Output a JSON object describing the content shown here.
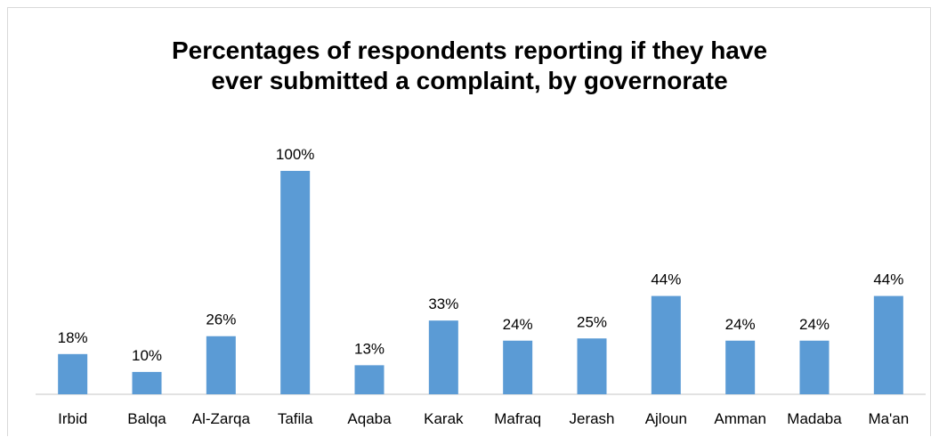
{
  "chart_data": {
    "type": "bar",
    "title_lines": [
      "Percentages of respondents reporting if they have",
      "ever submitted a complaint, by governorate"
    ],
    "categories": [
      "Irbid",
      "Balqa",
      "Al-Zarqa",
      "Tafila",
      "Aqaba",
      "Karak",
      "Mafraq",
      "Jerash",
      "Ajloun",
      "Amman",
      "Madaba",
      "Ma'an"
    ],
    "values": [
      18,
      10,
      26,
      100,
      13,
      33,
      24,
      25,
      44,
      24,
      24,
      44
    ],
    "value_labels": [
      "18%",
      "10%",
      "26%",
      "100%",
      "13%",
      "33%",
      "24%",
      "25%",
      "44%",
      "24%",
      "24%",
      "44%"
    ],
    "ylim": [
      0,
      100
    ],
    "grid": false,
    "bar_color": "#5b9bd5"
  }
}
